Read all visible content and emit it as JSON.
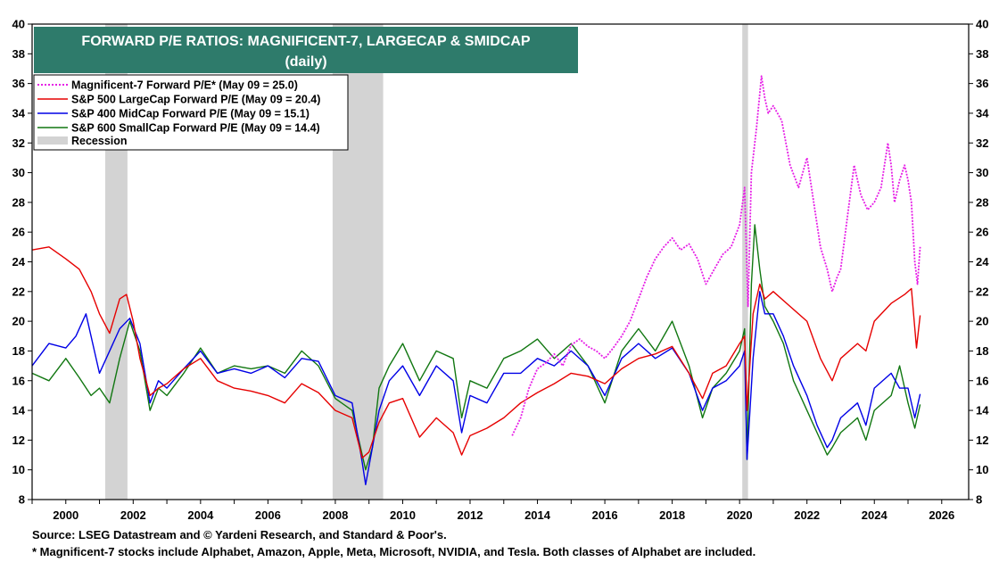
{
  "chart_data": {
    "type": "line",
    "title": "FORWARD P/E RATIOS: MAGNIFICENT-7, LARGECAP & SMIDCAP",
    "subtitle": "(daily)",
    "xlabel": "",
    "ylabel": "",
    "xlim": [
      1999.0,
      2026.8
    ],
    "ylim": [
      8,
      40
    ],
    "x_ticks": [
      2000,
      2002,
      2004,
      2006,
      2008,
      2010,
      2012,
      2014,
      2016,
      2018,
      2020,
      2022,
      2024,
      2026
    ],
    "y_ticks": [
      8,
      10,
      12,
      14,
      16,
      18,
      20,
      22,
      24,
      26,
      28,
      30,
      32,
      34,
      36,
      38,
      40
    ],
    "grid": false,
    "legend_position": "top-left",
    "recessions": [
      [
        2001.17,
        2001.83
      ],
      [
        2007.92,
        2009.42
      ],
      [
        2020.08,
        2020.25
      ]
    ],
    "recession_label": "Recession",
    "recession_color": "#d3d3d3",
    "series": [
      {
        "name": "Magnificent-7 Forward P/E* (May 09 = 25.0)",
        "color": "#e61ee6",
        "dash": "dotted",
        "x": [
          2013.25,
          2013.5,
          2013.75,
          2014.0,
          2014.25,
          2014.5,
          2014.75,
          2015.0,
          2015.25,
          2015.5,
          2015.75,
          2016.0,
          2016.25,
          2016.5,
          2016.75,
          2017.0,
          2017.25,
          2017.5,
          2017.75,
          2018.0,
          2018.25,
          2018.5,
          2018.75,
          2019.0,
          2019.25,
          2019.5,
          2019.75,
          2020.0,
          2020.15,
          2020.25,
          2020.35,
          2020.5,
          2020.65,
          2020.75,
          2020.85,
          2021.0,
          2021.25,
          2021.5,
          2021.75,
          2022.0,
          2022.2,
          2022.4,
          2022.6,
          2022.75,
          2022.9,
          2023.0,
          2023.2,
          2023.4,
          2023.6,
          2023.8,
          2024.0,
          2024.2,
          2024.4,
          2024.5,
          2024.6,
          2024.75,
          2024.9,
          2025.0,
          2025.1,
          2025.2,
          2025.28,
          2025.36
        ],
        "values": [
          12.3,
          13.5,
          15.5,
          16.8,
          17.2,
          17.8,
          17.0,
          18.4,
          18.8,
          18.3,
          18.0,
          17.5,
          18.2,
          19.0,
          20.0,
          21.5,
          23.0,
          24.2,
          25.0,
          25.6,
          24.8,
          25.2,
          24.2,
          22.5,
          23.5,
          24.5,
          25.0,
          26.5,
          29.0,
          21.0,
          30.0,
          33.0,
          36.5,
          35.0,
          34.0,
          34.5,
          33.5,
          30.5,
          29.0,
          31.0,
          28.0,
          25.0,
          23.5,
          22.0,
          23.0,
          23.5,
          27.0,
          30.5,
          28.5,
          27.5,
          28.0,
          29.0,
          32.0,
          30.5,
          28.0,
          29.5,
          30.5,
          29.5,
          28.0,
          24.0,
          22.5,
          25.0
        ]
      },
      {
        "name": "S&P 500 LargeCap Forward P/E (May 09 = 20.4)",
        "color": "#e60000",
        "dash": "solid",
        "x": [
          1999.0,
          1999.5,
          2000.0,
          2000.4,
          2000.75,
          2001.0,
          2001.3,
          2001.6,
          2001.8,
          2002.0,
          2002.2,
          2002.5,
          2002.75,
          2003.0,
          2003.5,
          2004.0,
          2004.5,
          2005.0,
          2005.5,
          2006.0,
          2006.5,
          2007.0,
          2007.5,
          2008.0,
          2008.5,
          2008.8,
          2009.0,
          2009.3,
          2009.6,
          2010.0,
          2010.5,
          2011.0,
          2011.5,
          2011.75,
          2012.0,
          2012.5,
          2013.0,
          2013.5,
          2014.0,
          2014.5,
          2015.0,
          2015.5,
          2016.0,
          2016.5,
          2017.0,
          2017.5,
          2018.0,
          2018.5,
          2018.9,
          2019.2,
          2019.6,
          2020.0,
          2020.15,
          2020.22,
          2020.4,
          2020.6,
          2020.75,
          2021.0,
          2021.5,
          2022.0,
          2022.4,
          2022.75,
          2023.0,
          2023.5,
          2023.75,
          2024.0,
          2024.5,
          2024.9,
          2025.1,
          2025.25,
          2025.36
        ],
        "values": [
          24.8,
          25.0,
          24.2,
          23.5,
          22.0,
          20.5,
          19.2,
          21.5,
          21.8,
          20.0,
          17.5,
          15.0,
          15.5,
          15.8,
          16.8,
          17.5,
          16.0,
          15.5,
          15.3,
          15.0,
          14.5,
          15.8,
          15.2,
          14.0,
          13.5,
          10.8,
          11.2,
          13.2,
          14.5,
          14.8,
          12.2,
          13.5,
          12.5,
          11.0,
          12.3,
          12.8,
          13.5,
          14.5,
          15.2,
          15.8,
          16.5,
          16.3,
          15.8,
          16.8,
          17.5,
          17.8,
          18.3,
          16.5,
          14.8,
          16.5,
          17.0,
          18.5,
          19.0,
          14.0,
          20.5,
          22.5,
          21.5,
          22.0,
          21.0,
          20.0,
          17.5,
          16.0,
          17.5,
          18.5,
          18.0,
          20.0,
          21.2,
          21.8,
          22.2,
          18.2,
          20.4
        ]
      },
      {
        "name": "S&P 400 MidCap Forward P/E (May 09 = 15.1)",
        "color": "#0000e6",
        "dash": "solid",
        "x": [
          1999.0,
          1999.5,
          2000.0,
          2000.3,
          2000.6,
          2001.0,
          2001.3,
          2001.6,
          2001.9,
          2002.2,
          2002.5,
          2002.75,
          2003.0,
          2003.5,
          2004.0,
          2004.5,
          2005.0,
          2005.5,
          2006.0,
          2006.5,
          2007.0,
          2007.5,
          2008.0,
          2008.5,
          2008.8,
          2008.9,
          2009.1,
          2009.3,
          2009.6,
          2010.0,
          2010.5,
          2011.0,
          2011.5,
          2011.75,
          2012.0,
          2012.5,
          2013.0,
          2013.5,
          2014.0,
          2014.5,
          2015.0,
          2015.5,
          2016.0,
          2016.5,
          2017.0,
          2017.5,
          2018.0,
          2018.5,
          2018.9,
          2019.2,
          2019.6,
          2020.0,
          2020.15,
          2020.22,
          2020.4,
          2020.6,
          2020.75,
          2021.0,
          2021.3,
          2021.6,
          2022.0,
          2022.3,
          2022.6,
          2022.75,
          2023.0,
          2023.5,
          2023.75,
          2024.0,
          2024.5,
          2024.75,
          2025.0,
          2025.2,
          2025.36
        ],
        "values": [
          17.0,
          18.5,
          18.2,
          19.0,
          20.5,
          16.5,
          18.0,
          19.5,
          20.2,
          18.5,
          14.5,
          16.0,
          15.5,
          16.8,
          18.0,
          16.5,
          16.8,
          16.5,
          17.0,
          16.2,
          17.5,
          17.3,
          15.0,
          14.5,
          10.5,
          9.0,
          11.5,
          14.0,
          16.0,
          17.0,
          15.0,
          17.0,
          16.0,
          12.5,
          15.0,
          14.5,
          16.5,
          16.5,
          17.5,
          17.0,
          18.0,
          17.0,
          15.0,
          17.5,
          18.5,
          17.5,
          18.2,
          16.5,
          14.0,
          15.5,
          16.0,
          17.0,
          18.0,
          10.7,
          17.5,
          22.0,
          20.5,
          20.5,
          19.0,
          17.0,
          15.0,
          13.0,
          11.5,
          12.0,
          13.5,
          14.5,
          13.0,
          15.5,
          16.5,
          15.5,
          15.5,
          13.5,
          15.1
        ]
      },
      {
        "name": "S&P 600 SmallCap Forward P/E (May 09 = 14.4)",
        "color": "#117711",
        "dash": "solid",
        "x": [
          1999.0,
          1999.5,
          2000.0,
          2000.4,
          2000.75,
          2001.0,
          2001.3,
          2001.6,
          2001.9,
          2002.2,
          2002.5,
          2002.75,
          2003.0,
          2003.5,
          2004.0,
          2004.5,
          2005.0,
          2005.5,
          2006.0,
          2006.5,
          2007.0,
          2007.5,
          2008.0,
          2008.5,
          2008.8,
          2008.9,
          2009.1,
          2009.3,
          2009.6,
          2010.0,
          2010.5,
          2011.0,
          2011.5,
          2011.75,
          2012.0,
          2012.5,
          2013.0,
          2013.5,
          2014.0,
          2014.5,
          2015.0,
          2015.5,
          2016.0,
          2016.5,
          2017.0,
          2017.5,
          2018.0,
          2018.5,
          2018.9,
          2019.2,
          2019.6,
          2020.0,
          2020.15,
          2020.22,
          2020.35,
          2020.45,
          2020.6,
          2020.75,
          2021.0,
          2021.3,
          2021.6,
          2022.0,
          2022.3,
          2022.6,
          2022.75,
          2023.0,
          2023.5,
          2023.75,
          2024.0,
          2024.5,
          2024.75,
          2025.0,
          2025.2,
          2025.36
        ],
        "values": [
          16.5,
          16.0,
          17.5,
          16.2,
          15.0,
          15.5,
          14.5,
          17.5,
          20.0,
          18.0,
          14.0,
          15.5,
          15.0,
          16.5,
          18.2,
          16.5,
          17.0,
          16.8,
          17.0,
          16.5,
          18.0,
          17.0,
          14.8,
          14.0,
          11.0,
          10.0,
          11.5,
          15.5,
          17.0,
          18.5,
          16.0,
          18.0,
          17.5,
          13.5,
          16.0,
          15.5,
          17.5,
          18.0,
          18.8,
          17.5,
          18.5,
          17.0,
          14.5,
          18.0,
          19.5,
          18.0,
          20.0,
          17.0,
          13.5,
          15.5,
          16.5,
          18.0,
          19.5,
          10.7,
          22.5,
          26.5,
          23.5,
          21.0,
          20.0,
          18.5,
          16.0,
          14.0,
          12.5,
          11.0,
          11.5,
          12.5,
          13.5,
          12.0,
          14.0,
          15.0,
          17.0,
          14.5,
          12.8,
          14.4
        ]
      }
    ]
  },
  "footer": {
    "source": "Source: LSEG Datastream and © Yardeni Research, and Standard & Poor's.",
    "note": "* Magnificent-7 stocks include Alphabet, Amazon, Apple, Meta, Microsoft, NVIDIA, and Tesla. Both classes of Alphabet are included."
  },
  "colors": {
    "title_bg": "#2e7b6b",
    "recession": "#d3d3d3"
  }
}
